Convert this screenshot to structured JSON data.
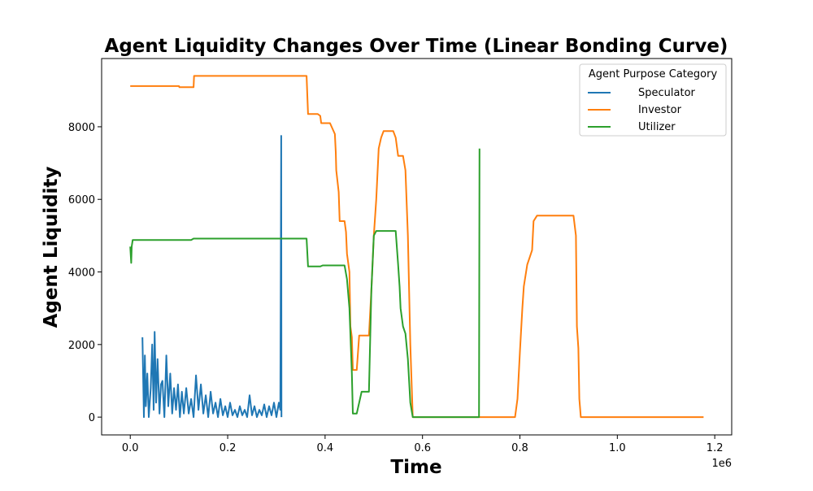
{
  "chart_data": {
    "type": "line",
    "title": "Agent Liquidity Changes Over Time (Linear Bonding Curve)",
    "x_label": "Time",
    "y_label": "Agent Liquidity",
    "x_offset_label": "1e6",
    "legend_title": "Agent Purpose Category",
    "legend_position": "upper right",
    "xlim": [
      -58800,
      1234800
    ],
    "ylim": [
      -490,
      9880
    ],
    "xticks": [
      {
        "value": 0,
        "label": "0.0"
      },
      {
        "value": 200000,
        "label": "0.2"
      },
      {
        "value": 400000,
        "label": "0.4"
      },
      {
        "value": 600000,
        "label": "0.6"
      },
      {
        "value": 800000,
        "label": "0.8"
      },
      {
        "value": 1000000,
        "label": "1.0"
      },
      {
        "value": 1200000,
        "label": "1.2"
      }
    ],
    "yticks": [
      0,
      2000,
      4000,
      6000,
      8000
    ],
    "series": [
      {
        "name": "Speculator",
        "color": "#1f77b4",
        "x": [
          25000,
          28000,
          30000,
          32000,
          35000,
          38000,
          42000,
          45000,
          48000,
          50000,
          53000,
          56000,
          60000,
          63000,
          66000,
          70000,
          74000,
          78000,
          82000,
          86000,
          90000,
          94000,
          98000,
          102000,
          106000,
          110000,
          115000,
          120000,
          125000,
          130000,
          135000,
          140000,
          145000,
          150000,
          155000,
          160000,
          165000,
          170000,
          175000,
          180000,
          185000,
          190000,
          195000,
          200000,
          205000,
          210000,
          215000,
          220000,
          225000,
          230000,
          235000,
          240000,
          245000,
          250000,
          255000,
          260000,
          265000,
          270000,
          275000,
          280000,
          285000,
          290000,
          295000,
          300000,
          305000,
          308000,
          310000,
          310500
        ],
        "values": [
          2200,
          0,
          1700,
          300,
          1200,
          0,
          800,
          2000,
          200,
          2350,
          400,
          1600,
          100,
          900,
          1000,
          0,
          1700,
          300,
          1200,
          100,
          800,
          200,
          900,
          0,
          700,
          100,
          800,
          100,
          500,
          0,
          1150,
          200,
          900,
          100,
          600,
          0,
          700,
          100,
          400,
          0,
          500,
          50,
          300,
          0,
          400,
          50,
          200,
          0,
          300,
          50,
          200,
          0,
          600,
          50,
          300,
          0,
          200,
          50,
          350,
          0,
          300,
          50,
          400,
          0,
          400,
          200,
          7750,
          0
        ]
      },
      {
        "name": "Investor",
        "color": "#ff7f0e",
        "x": [
          0,
          100000,
          101000,
          130000,
          131000,
          362000,
          365000,
          385000,
          390000,
          392000,
          410000,
          420000,
          422000,
          423000,
          428000,
          430000,
          440000,
          443000,
          445000,
          450000,
          452000,
          455000,
          457000,
          465000,
          470000,
          490000,
          495000,
          500000,
          505000,
          510000,
          515000,
          520000,
          540000,
          545000,
          550000,
          560000,
          565000,
          570000,
          575000,
          580000,
          790000,
          795000,
          800000,
          805000,
          808000,
          815000,
          820000,
          825000,
          828000,
          835000,
          910000,
          915000,
          917000,
          920000,
          922000,
          925000,
          1177000
        ],
        "values": [
          9120,
          9120,
          9090,
          9090,
          9400,
          9400,
          8350,
          8350,
          8300,
          8100,
          8100,
          7800,
          7300,
          6800,
          6200,
          5400,
          5400,
          5100,
          4500,
          4000,
          2500,
          2200,
          1300,
          1300,
          2250,
          2250,
          3500,
          5000,
          6000,
          7400,
          7700,
          7880,
          7880,
          7700,
          7200,
          7200,
          6800,
          5000,
          2000,
          0,
          0,
          500,
          1800,
          3000,
          3600,
          4200,
          4400,
          4600,
          5400,
          5550,
          5550,
          5000,
          2500,
          1900,
          500,
          0,
          0
        ]
      },
      {
        "name": "Utilizer",
        "color": "#2ca02c",
        "x": [
          0,
          2000,
          3000,
          5000,
          125000,
          130000,
          362000,
          365000,
          390000,
          395000,
          440000,
          445000,
          450000,
          455000,
          457000,
          465000,
          475000,
          490000,
          495000,
          500000,
          505000,
          545000,
          550000,
          553000,
          555000,
          560000,
          565000,
          570000,
          575000,
          580000,
          716000,
          717000
        ],
        "values": [
          4700,
          4250,
          4700,
          4880,
          4880,
          4920,
          4920,
          4150,
          4150,
          4180,
          4180,
          3800,
          3000,
          1200,
          100,
          100,
          700,
          700,
          3500,
          5000,
          5130,
          5130,
          4200,
          3600,
          3000,
          2500,
          2300,
          1600,
          400,
          0,
          0,
          7400
        ]
      }
    ]
  }
}
